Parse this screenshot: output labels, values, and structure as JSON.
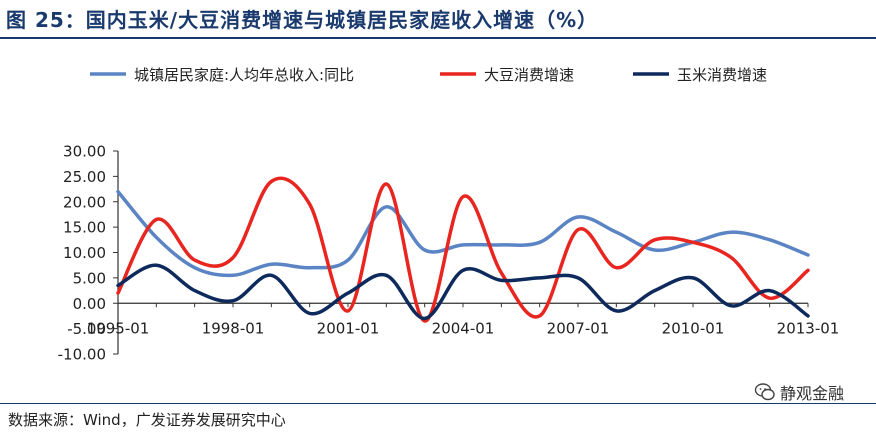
{
  "title": "图 25：国内玉米/大豆消费增速与城镇居民家庭收入增速（%）",
  "source": "数据来源：Wind，广发证券发展研究中心",
  "watermark": "静观金融",
  "chart_data": {
    "type": "line",
    "x": [
      1995,
      1996,
      1997,
      1998,
      1999,
      2000,
      2001,
      2002,
      2003,
      2004,
      2005,
      2006,
      2007,
      2008,
      2009,
      2010,
      2011,
      2012,
      2013
    ],
    "xticks": [
      "1995-01",
      "1998-01",
      "2001-01",
      "2004-01",
      "2007-01",
      "2010-01",
      "2013-01"
    ],
    "xtick_years": [
      1995,
      1998,
      2001,
      2004,
      2007,
      2010,
      2013
    ],
    "yticks": [
      "30.00",
      "25.00",
      "20.00",
      "15.00",
      "10.00",
      "5.00",
      "0.00",
      "-5.00",
      "-10.00"
    ],
    "ylim": [
      -10,
      30
    ],
    "legend_position": "top",
    "series": [
      {
        "name": "城镇居民家庭:人均年总收入:同比",
        "color": "#5b84c4",
        "values": [
          22.0,
          13.0,
          7.0,
          5.5,
          7.7,
          7.0,
          8.5,
          19.0,
          10.5,
          11.5,
          11.5,
          12.0,
          17.0,
          14.0,
          10.5,
          12.0,
          14.0,
          12.5,
          9.5
        ]
      },
      {
        "name": "大豆消费增速",
        "color": "#e8251f",
        "values": [
          2.0,
          16.5,
          8.5,
          9.0,
          24.0,
          19.5,
          -1.5,
          23.5,
          -3.5,
          21.0,
          6.0,
          -2.5,
          14.5,
          7.0,
          12.5,
          12.0,
          9.0,
          1.0,
          6.5
        ]
      },
      {
        "name": "玉米消费增速",
        "color": "#0e2a5c",
        "values": [
          3.5,
          7.5,
          2.5,
          0.5,
          5.5,
          -2.0,
          2.0,
          5.5,
          -3.0,
          6.5,
          4.5,
          5.0,
          5.0,
          -1.5,
          2.5,
          5.0,
          -0.5,
          2.5,
          -2.5
        ]
      }
    ]
  }
}
